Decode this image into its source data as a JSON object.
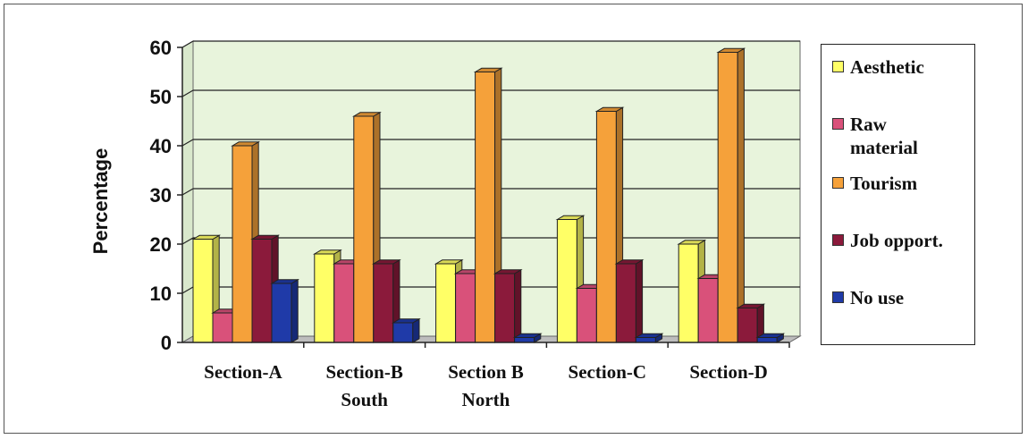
{
  "chart_data": {
    "type": "bar",
    "title": "",
    "xlabel": "",
    "ylabel": "Percentage",
    "ylim": [
      0,
      60
    ],
    "yticks": [
      0,
      10,
      20,
      30,
      40,
      50,
      60
    ],
    "grid": true,
    "legend_position": "right",
    "categories": [
      [
        "Section-A"
      ],
      [
        "Section-B",
        "South"
      ],
      [
        "Section B",
        "North"
      ],
      [
        "Section-C"
      ],
      [
        "Section-D"
      ]
    ],
    "series": [
      {
        "name": "Aesthetic",
        "color": "#ffff66",
        "values": [
          21,
          18,
          16,
          25,
          20
        ]
      },
      {
        "name": "Raw material",
        "color": "#d9517a",
        "values": [
          6,
          16,
          14,
          11,
          13
        ]
      },
      {
        "name": "Tourism",
        "color": "#f5a13a",
        "values": [
          40,
          46,
          55,
          47,
          59
        ]
      },
      {
        "name": "Job opport.",
        "color": "#8b1a3b",
        "values": [
          21,
          16,
          14,
          16,
          7
        ]
      },
      {
        "name": "No use",
        "color": "#1f3aa8",
        "values": [
          12,
          4,
          1,
          1,
          1
        ]
      }
    ],
    "plot_background": "#e8f4dc"
  }
}
